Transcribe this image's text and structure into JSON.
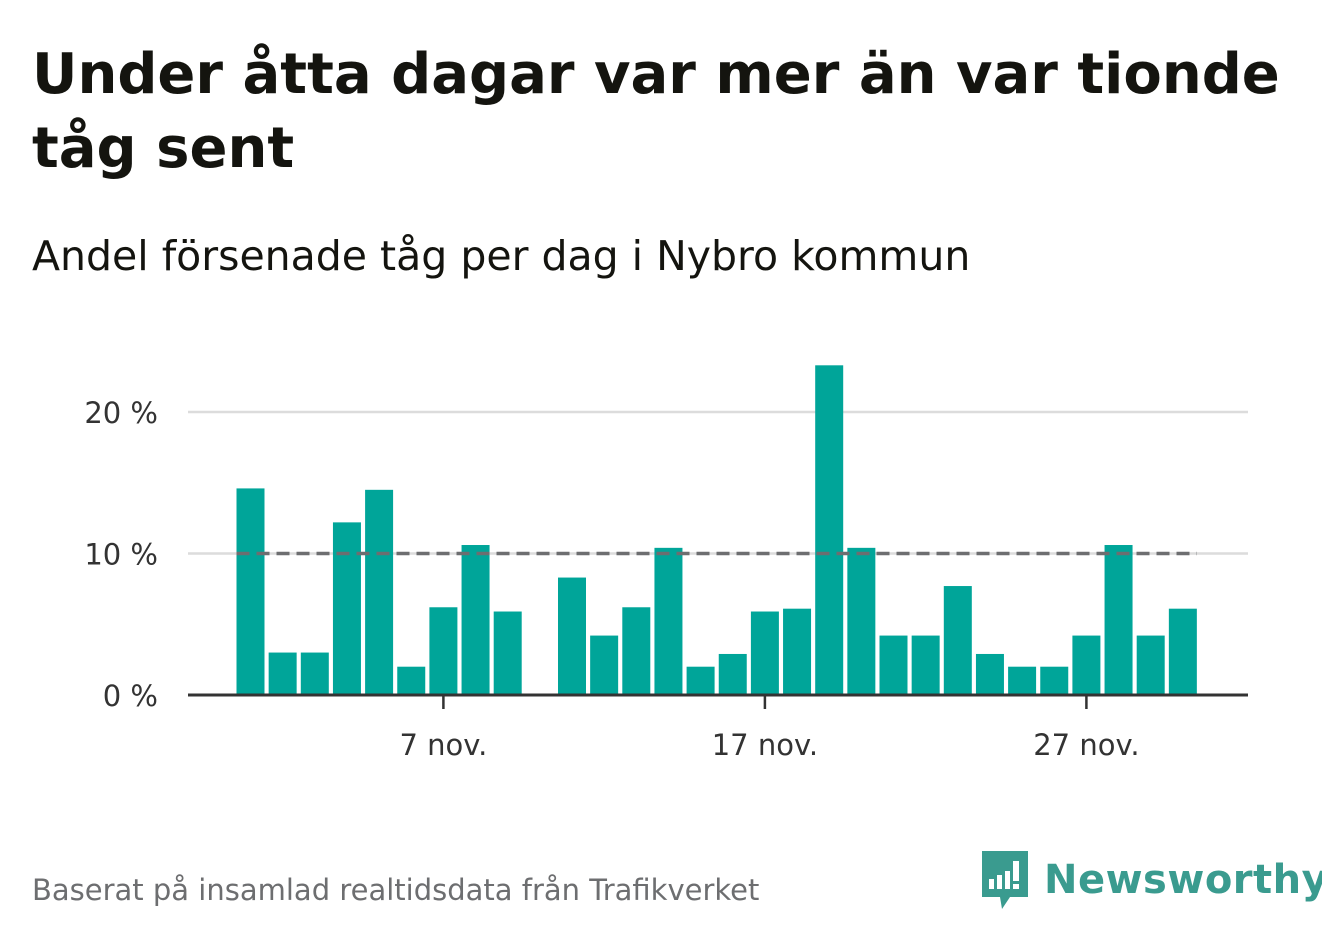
{
  "title": "Under åtta dagar var mer än var tionde tåg sent",
  "subtitle": "Andel försenade tåg per dag i Nybro kommun",
  "footer": {
    "source": "Baserat på insamlad realtidsdata från Trafikverket",
    "brand": "Newsworthy"
  },
  "colors": {
    "bar": "#00a599",
    "threshold_line": "#6d6e70",
    "gridline": "#dcdcdc",
    "axis": "#333333",
    "brand": "#3a9b8f"
  },
  "chart_data": {
    "type": "bar",
    "x": [
      "1 nov.",
      "2 nov.",
      "3 nov.",
      "4 nov.",
      "5 nov.",
      "6 nov.",
      "7 nov.",
      "8 nov.",
      "9 nov.",
      "10 nov.",
      "11 nov.",
      "12 nov.",
      "13 nov.",
      "14 nov.",
      "15 nov.",
      "16 nov.",
      "17 nov.",
      "18 nov.",
      "19 nov.",
      "20 nov.",
      "21 nov.",
      "22 nov.",
      "23 nov.",
      "24 nov.",
      "25 nov.",
      "26 nov.",
      "27 nov.",
      "28 nov.",
      "29 nov.",
      "30 nov."
    ],
    "values": [
      14.6,
      3.0,
      3.0,
      12.2,
      14.5,
      2.0,
      6.2,
      10.6,
      5.9,
      null,
      8.3,
      4.2,
      6.2,
      10.4,
      2.0,
      2.9,
      5.9,
      6.1,
      23.3,
      10.4,
      4.2,
      4.2,
      7.7,
      2.9,
      2.0,
      2.0,
      4.2,
      10.6,
      4.2,
      6.1
    ],
    "xticks": [
      "7 nov.",
      "17 nov.",
      "27 nov."
    ],
    "yticks": [
      "0 %",
      "10 %",
      "20 %"
    ],
    "ylim": [
      0,
      25
    ],
    "threshold": 10,
    "unit": "%",
    "xlabel": "",
    "ylabel": "",
    "grid": "horizontal"
  }
}
